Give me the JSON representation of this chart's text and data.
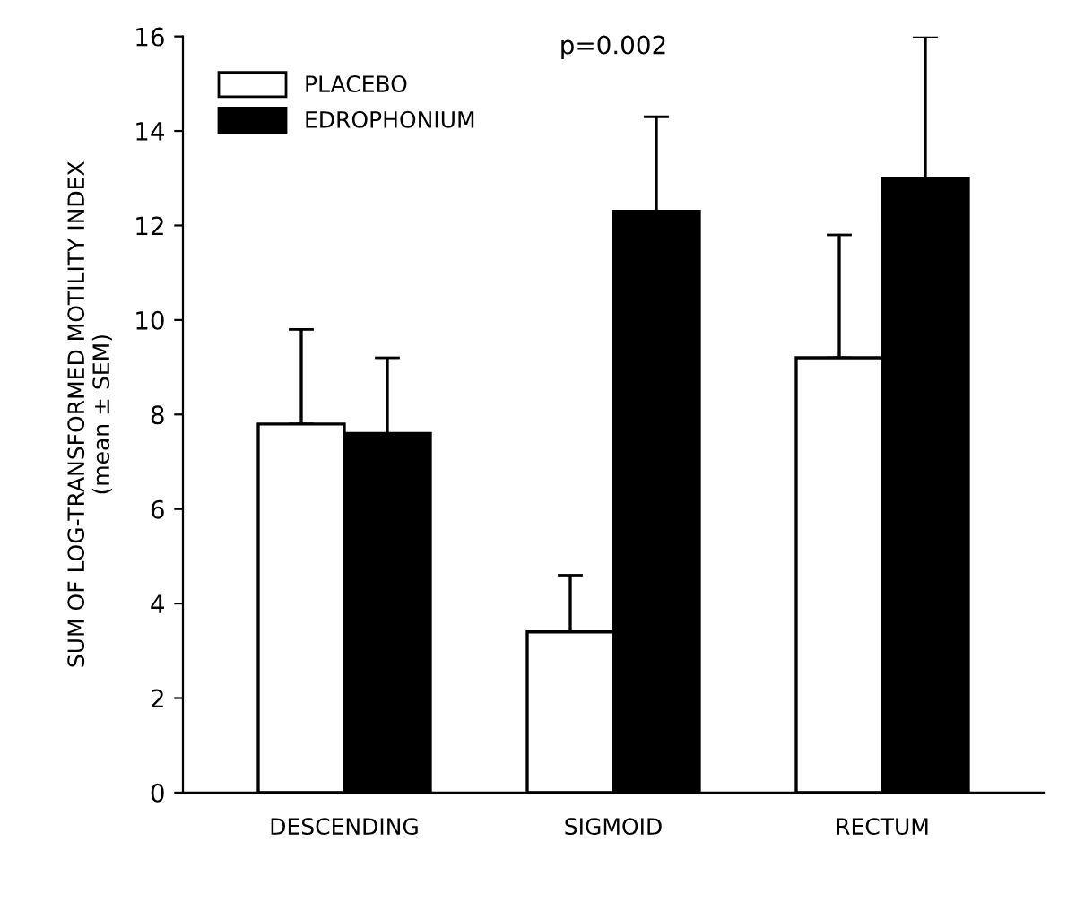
{
  "chart_data": {
    "type": "bar",
    "ylabel": "SUM OF LOG-TRANSFORMED MOTILITY INDEX\n(mean ± SEM)",
    "categories": [
      "DESCENDING",
      "SIGMOID",
      "RECTUM"
    ],
    "series": [
      {
        "name": "PLACEBO",
        "color": "#ffffff",
        "values": [
          7.8,
          3.4,
          9.2
        ],
        "errors": [
          [
            7.8,
            9.8
          ],
          [
            3.4,
            4.6
          ],
          [
            9.2,
            11.8
          ]
        ]
      },
      {
        "name": "EDROPHONIUM",
        "color": "#000000",
        "values": [
          7.6,
          12.3,
          13.0
        ],
        "errors": [
          [
            7.6,
            9.2
          ],
          [
            12.3,
            14.3
          ],
          [
            13.0,
            16.0
          ]
        ]
      }
    ],
    "ylim": [
      0,
      16
    ],
    "yticks": [
      0,
      2,
      4,
      6,
      8,
      10,
      12,
      14,
      16
    ],
    "annotations": [
      "p=0.002"
    ],
    "legend": "top left",
    "grid": false
  }
}
